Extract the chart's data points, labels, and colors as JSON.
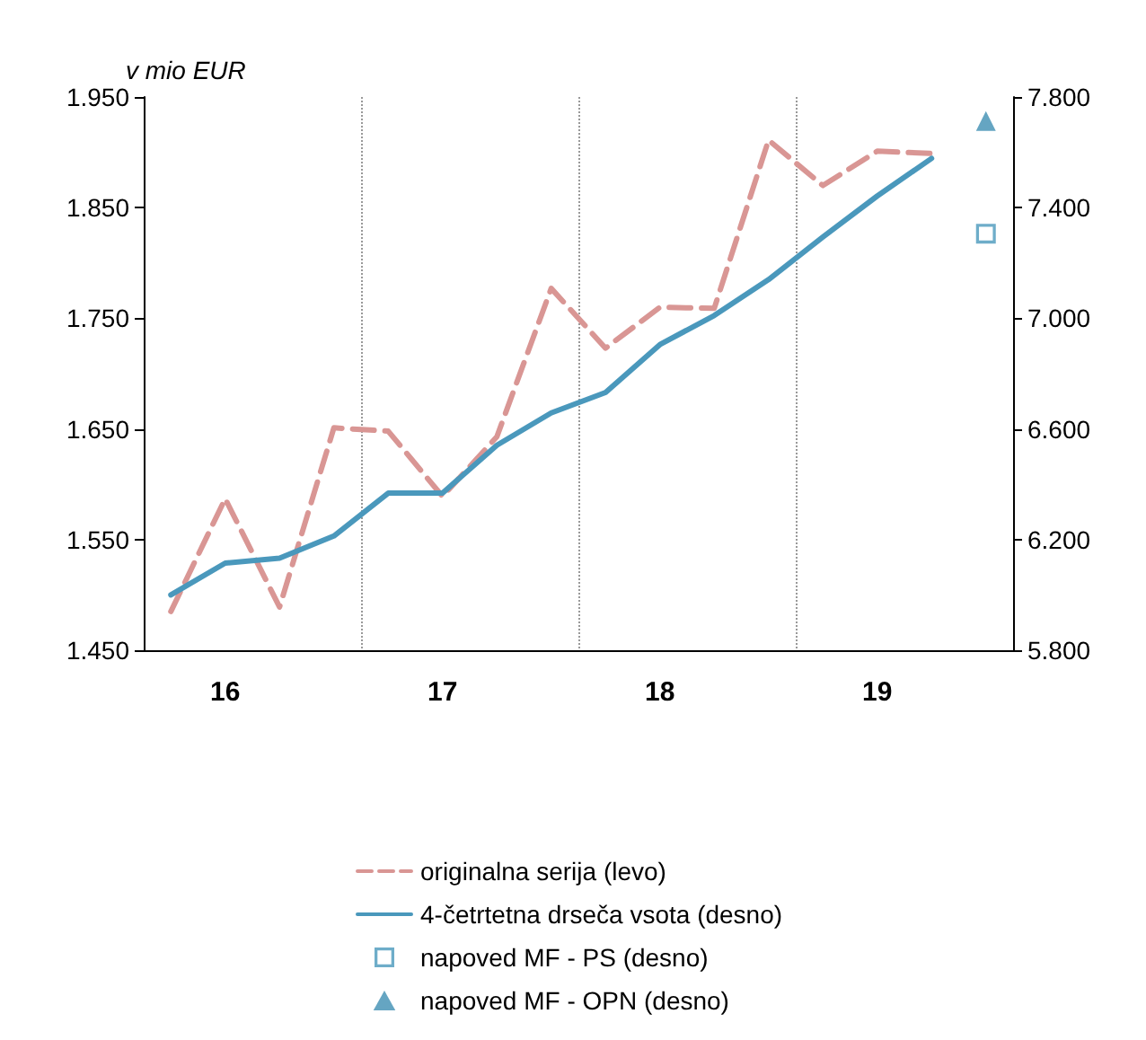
{
  "chart_data": {
    "type": "line",
    "ylabel": "v mio EUR",
    "categories": [
      null,
      "16",
      null,
      null,
      null,
      "17",
      null,
      null,
      null,
      "18",
      null,
      null,
      null,
      "19",
      null,
      null
    ],
    "ylim": [
      1450,
      1950
    ],
    "yticks": [
      {
        "value": 1450,
        "label": "1.450"
      },
      {
        "value": 1550,
        "label": "1.550"
      },
      {
        "value": 1650,
        "label": "1.650"
      },
      {
        "value": 1750,
        "label": "1.750"
      },
      {
        "value": 1850,
        "label": "1.850"
      },
      {
        "value": 1950,
        "label": "1.950"
      }
    ],
    "y2lim": [
      5800,
      7800
    ],
    "y2ticks": [
      {
        "value": 5800,
        "label": "5.800"
      },
      {
        "value": 6200,
        "label": "6.200"
      },
      {
        "value": 6600,
        "label": "6.600"
      },
      {
        "value": 7000,
        "label": "7.000"
      },
      {
        "value": 7400,
        "label": "7.400"
      },
      {
        "value": 7800,
        "label": "7.800"
      }
    ],
    "grid": "x",
    "legend": "bottom",
    "series": [
      {
        "name": "originalna serija (levo)",
        "color": "#d99694",
        "line_style": "dashed",
        "marker": "none",
        "values": [
          1485,
          1587,
          1489,
          1651,
          1648,
          1589,
          1643,
          1777,
          1723,
          1760,
          1759,
          1911,
          1870,
          1901,
          1899,
          null
        ]
      },
      {
        "name": "4-četrtetna drseča vsota (desno)",
        "color": "#4a98bc",
        "line_style": "solid",
        "marker": "none",
        "axis": "y2",
        "values": [
          6000,
          6115,
          6133,
          6213,
          6368,
          6368,
          6541,
          6658,
          6732,
          6905,
          7010,
          7140,
          7294,
          7442,
          7578,
          null
        ]
      },
      {
        "name": "napoved MF - PS (desno)",
        "type": "scatter",
        "color": "#4a98bc",
        "marker": "square",
        "axis": "y2",
        "values": [
          null,
          null,
          null,
          null,
          null,
          null,
          null,
          null,
          null,
          null,
          null,
          null,
          null,
          null,
          null,
          7306
        ]
      },
      {
        "name": "napoved MF - OPN (desno)",
        "type": "scatter",
        "color": "#3f8fb3",
        "marker": "triangle",
        "axis": "y2",
        "values": [
          null,
          null,
          null,
          null,
          null,
          null,
          null,
          null,
          null,
          null,
          null,
          null,
          null,
          null,
          null,
          7713
        ]
      }
    ]
  }
}
